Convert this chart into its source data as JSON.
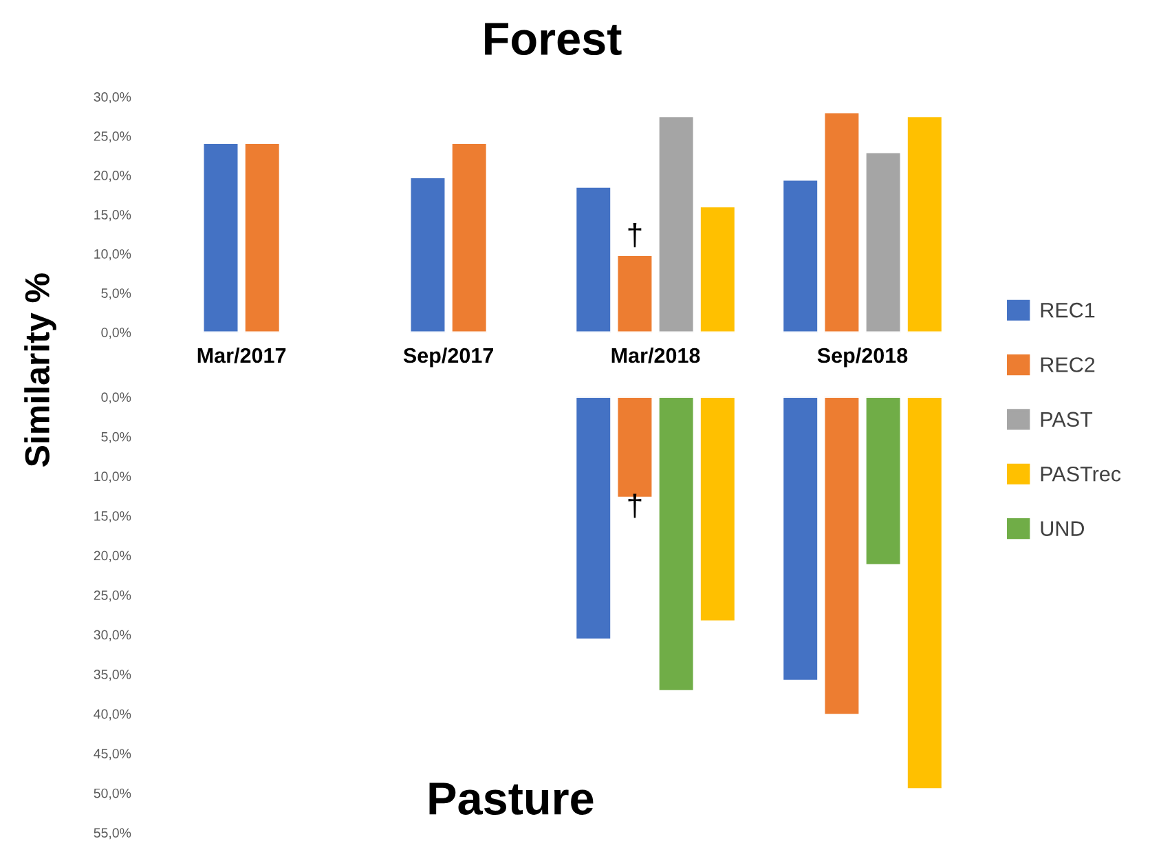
{
  "chart_data": [
    {
      "type": "bar",
      "title": "Forest",
      "ylabel": "Similarity %",
      "categories": [
        "Mar/2017",
        "Sep/2017",
        "Mar/2018",
        "Sep/2018"
      ],
      "series": [
        {
          "name": "REC1",
          "color": "#4472c4",
          "values": [
            24.1,
            19.7,
            18.5,
            19.4
          ]
        },
        {
          "name": "REC2",
          "color": "#ed7d31",
          "values": [
            24.1,
            24.1,
            9.8,
            28.0
          ]
        },
        {
          "name": "PAST",
          "color": "#a5a5a5",
          "values": [
            null,
            null,
            27.5,
            22.9
          ]
        },
        {
          "name": "PASTrec",
          "color": "#ffc000",
          "values": [
            null,
            null,
            16.0,
            27.5
          ]
        }
      ],
      "ylim": [
        0,
        30
      ],
      "yticks": [
        {
          "value": 0,
          "label": "0,0%"
        },
        {
          "value": 5,
          "label": "5,0%"
        },
        {
          "value": 10,
          "label": "10,0%"
        },
        {
          "value": 15,
          "label": "15,0%"
        },
        {
          "value": 20,
          "label": "20,0%"
        },
        {
          "value": 25,
          "label": "25,0%"
        },
        {
          "value": 30,
          "label": "30,0%"
        }
      ],
      "annotations": [
        {
          "text": "†",
          "x": "Mar/2018",
          "y": 9.8
        }
      ],
      "legend": "right",
      "grid": false
    },
    {
      "type": "bar",
      "title": "Pasture",
      "categories": [
        "Mar/2017",
        "Sep/2017",
        "Mar/2018",
        "Sep/2018"
      ],
      "series": [
        {
          "name": "REC1",
          "color": "#4472c4",
          "values": [
            null,
            null,
            30.6,
            35.8
          ]
        },
        {
          "name": "REC2",
          "color": "#ed7d31",
          "values": [
            null,
            null,
            12.7,
            40.1
          ]
        },
        {
          "name": "UND",
          "color": "#70ad47",
          "values": [
            null,
            null,
            37.1,
            21.2
          ]
        },
        {
          "name": "PASTrec",
          "color": "#ffc000",
          "values": [
            null,
            null,
            28.3,
            49.5
          ]
        }
      ],
      "ylim": [
        55,
        0
      ],
      "yticks": [
        {
          "value": 0,
          "label": "0,0%"
        },
        {
          "value": 5,
          "label": "5,0%"
        },
        {
          "value": 10,
          "label": "10,0%"
        },
        {
          "value": 15,
          "label": "15,0%"
        },
        {
          "value": 20,
          "label": "20,0%"
        },
        {
          "value": 25,
          "label": "25,0%"
        },
        {
          "value": 30,
          "label": "30,0%"
        },
        {
          "value": 35,
          "label": "35,0%"
        },
        {
          "value": 40,
          "label": "40,0%"
        },
        {
          "value": 45,
          "label": "45,0%"
        },
        {
          "value": 50,
          "label": "50,0%"
        },
        {
          "value": 55,
          "label": "55,0%"
        }
      ],
      "annotations": [
        {
          "text": "†",
          "x": "Mar/2018",
          "y": 12.7
        }
      ],
      "tick_labels": "y",
      "grid": false
    }
  ]
}
